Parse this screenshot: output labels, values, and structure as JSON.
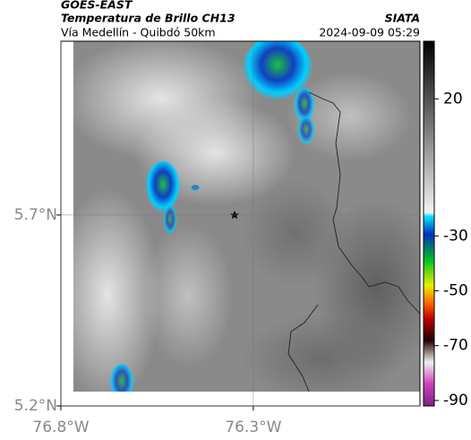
{
  "header": {
    "source": "GOES-EAST",
    "title": "Temperatura de Brillo CH13",
    "subtitle": "Vía Medellín - Quibdó 50km",
    "brand": "SIATA",
    "date": "2024-09-09 05:29"
  },
  "map": {
    "xlim": [
      -76.8,
      -75.867
    ],
    "ylim": [
      5.2,
      6.155
    ],
    "xticks": [
      {
        "value": -76.8,
        "label": "76.8°W"
      },
      {
        "value": -76.3,
        "label": "76.3°W"
      }
    ],
    "yticks": [
      {
        "value": 5.2,
        "label": "5.2°N"
      },
      {
        "value": 5.7,
        "label": "5.7°N"
      }
    ]
  },
  "colorbar": {
    "lim": [
      41,
      -92
    ],
    "ticks": [
      20,
      -30,
      -50,
      -70,
      -90
    ]
  }
}
